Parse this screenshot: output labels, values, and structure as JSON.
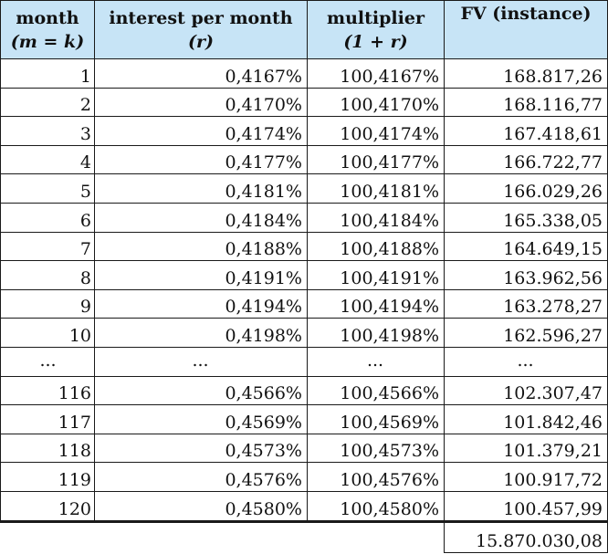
{
  "table": {
    "headers": [
      {
        "line1": "month",
        "line2": "(m = k)"
      },
      {
        "line1": "interest per month",
        "line2": "(r)"
      },
      {
        "line1": "multiplier",
        "line2": "(1 + r)"
      },
      {
        "line1": "FV (instance)",
        "line2": ""
      }
    ],
    "rows": [
      {
        "month": "1",
        "rate": "0,4167%",
        "multiplier": "100,4167%",
        "fv": "168.817,26"
      },
      {
        "month": "2",
        "rate": "0,4170%",
        "multiplier": "100,4170%",
        "fv": "168.116,77"
      },
      {
        "month": "3",
        "rate": "0,4174%",
        "multiplier": "100,4174%",
        "fv": "167.418,61"
      },
      {
        "month": "4",
        "rate": "0,4177%",
        "multiplier": "100,4177%",
        "fv": "166.722,77"
      },
      {
        "month": "5",
        "rate": "0,4181%",
        "multiplier": "100,4181%",
        "fv": "166.029,26"
      },
      {
        "month": "6",
        "rate": "0,4184%",
        "multiplier": "100,4184%",
        "fv": "165.338,05"
      },
      {
        "month": "7",
        "rate": "0,4188%",
        "multiplier": "100,4188%",
        "fv": "164.649,15"
      },
      {
        "month": "8",
        "rate": "0,4191%",
        "multiplier": "100,4191%",
        "fv": "163.962,56"
      },
      {
        "month": "9",
        "rate": "0,4194%",
        "multiplier": "100,4194%",
        "fv": "163.278,27"
      },
      {
        "month": "10",
        "rate": "0,4198%",
        "multiplier": "100,4198%",
        "fv": "162.596,27"
      },
      {
        "month": "...",
        "rate": "...",
        "multiplier": "...",
        "fv": "...",
        "ellipsis": true
      },
      {
        "month": "116",
        "rate": "0,4566%",
        "multiplier": "100,4566%",
        "fv": "102.307,47"
      },
      {
        "month": "117",
        "rate": "0,4569%",
        "multiplier": "100,4569%",
        "fv": "101.842,46"
      },
      {
        "month": "118",
        "rate": "0,4573%",
        "multiplier": "100,4573%",
        "fv": "101.379,21"
      },
      {
        "month": "119",
        "rate": "0,4576%",
        "multiplier": "100,4576%",
        "fv": "100.917,72"
      },
      {
        "month": "120",
        "rate": "0,4580%",
        "multiplier": "100,4580%",
        "fv": "100.457,99"
      }
    ],
    "total": "15.870.030,08",
    "colors": {
      "header_bg": "#c7e4f6",
      "border": "#1a1a1a"
    }
  }
}
